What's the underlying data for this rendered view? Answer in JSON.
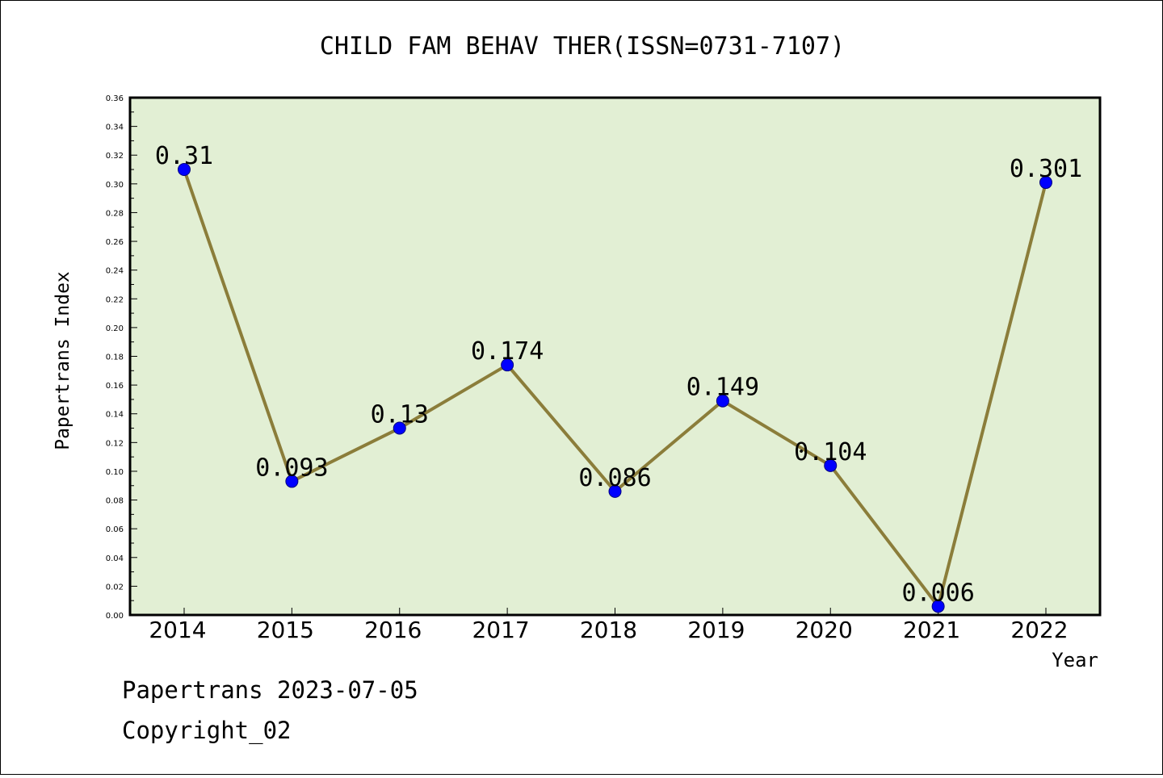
{
  "chart_data": {
    "type": "line",
    "title": "CHILD FAM BEHAV THER(ISSN=0731-7107)",
    "xlabel": "Year",
    "ylabel": "Papertrans Index",
    "categories": [
      "2014",
      "2015",
      "2016",
      "2017",
      "2018",
      "2019",
      "2020",
      "2021",
      "2022"
    ],
    "series": [
      {
        "values": [
          0.31,
          0.093,
          0.13,
          0.174,
          0.086,
          0.149,
          0.104,
          0.006,
          0.301
        ],
        "labels": [
          "0.31",
          "0.093",
          "0.13",
          "0.174",
          "0.086",
          "0.149",
          "0.104",
          "0.006",
          "0.301"
        ]
      }
    ],
    "ylim": [
      0,
      0.36
    ],
    "yticks": [
      "0.00",
      "0.02",
      "0.04",
      "0.06",
      "0.08",
      "0.10",
      "0.12",
      "0.14",
      "0.16",
      "0.18",
      "0.20",
      "0.22",
      "0.24",
      "0.26",
      "0.28",
      "0.30",
      "0.32",
      "0.34",
      "0.36"
    ],
    "grid": false,
    "colors": {
      "plot_background": "#e2efd4",
      "line": "#8b7d3a",
      "marker": "#0000ff"
    }
  },
  "footer": {
    "line1": "Papertrans 2023-07-05",
    "line2": "Copyright_02"
  }
}
